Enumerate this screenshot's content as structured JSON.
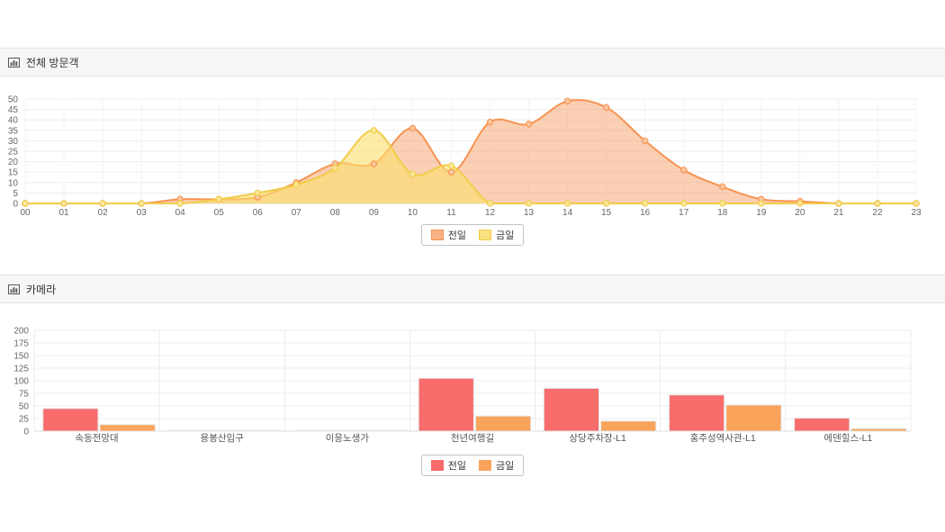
{
  "panels": [
    {
      "title": "전체 방문객",
      "icon": "bar-chart-icon"
    },
    {
      "title": "카메라",
      "icon": "bar-chart-icon"
    }
  ],
  "chart_data": [
    {
      "type": "area",
      "title": "전체 방문객",
      "x": [
        "00",
        "01",
        "02",
        "03",
        "04",
        "05",
        "06",
        "07",
        "08",
        "09",
        "10",
        "11",
        "12",
        "13",
        "14",
        "15",
        "16",
        "17",
        "18",
        "19",
        "20",
        "21",
        "22",
        "23"
      ],
      "series": [
        {
          "name": "전일",
          "line_color": "#F79352",
          "fill_color": "rgba(248,160,104,0.50)",
          "marker_fill": "#F9C9A2",
          "swatch": "#F9B183",
          "values": [
            0,
            0,
            0,
            0,
            2,
            2,
            3,
            10,
            19,
            19,
            36,
            15,
            39,
            38,
            49,
            46,
            30,
            16,
            8,
            2,
            1,
            0,
            0,
            0
          ]
        },
        {
          "name": "금일",
          "line_color": "#F0CC49",
          "fill_color": "rgba(250,224,106,0.60)",
          "marker_fill": "#FAE89B",
          "swatch": "#F9E17F",
          "values": [
            0,
            0,
            0,
            0,
            0,
            2,
            5,
            9,
            17,
            35,
            14,
            18,
            0,
            0,
            0,
            0,
            0,
            0,
            0,
            0,
            0,
            0,
            0,
            0
          ]
        }
      ],
      "ylim": [
        0,
        50
      ],
      "ytick": 5,
      "grid": true,
      "legend_position": "bottom"
    },
    {
      "type": "bar",
      "title": "카메라",
      "categories": [
        "속동전망대",
        "용봉산입구",
        "이응노생가",
        "천년여행길",
        "상당주차장-L1",
        "홍주성역사관-L1",
        "에덴힐스-L1"
      ],
      "series": [
        {
          "name": "전일",
          "color": "#F86C6C",
          "swatch": "#F86C6C",
          "values": [
            45,
            1,
            1,
            105,
            85,
            72,
            26
          ]
        },
        {
          "name": "금일",
          "color": "#F9A35B",
          "swatch": "#F9A35B",
          "values": [
            13,
            1,
            1,
            30,
            20,
            52,
            5
          ]
        }
      ],
      "ylim": [
        0,
        200
      ],
      "ytick": 25,
      "grid": true,
      "legend_position": "bottom"
    }
  ]
}
